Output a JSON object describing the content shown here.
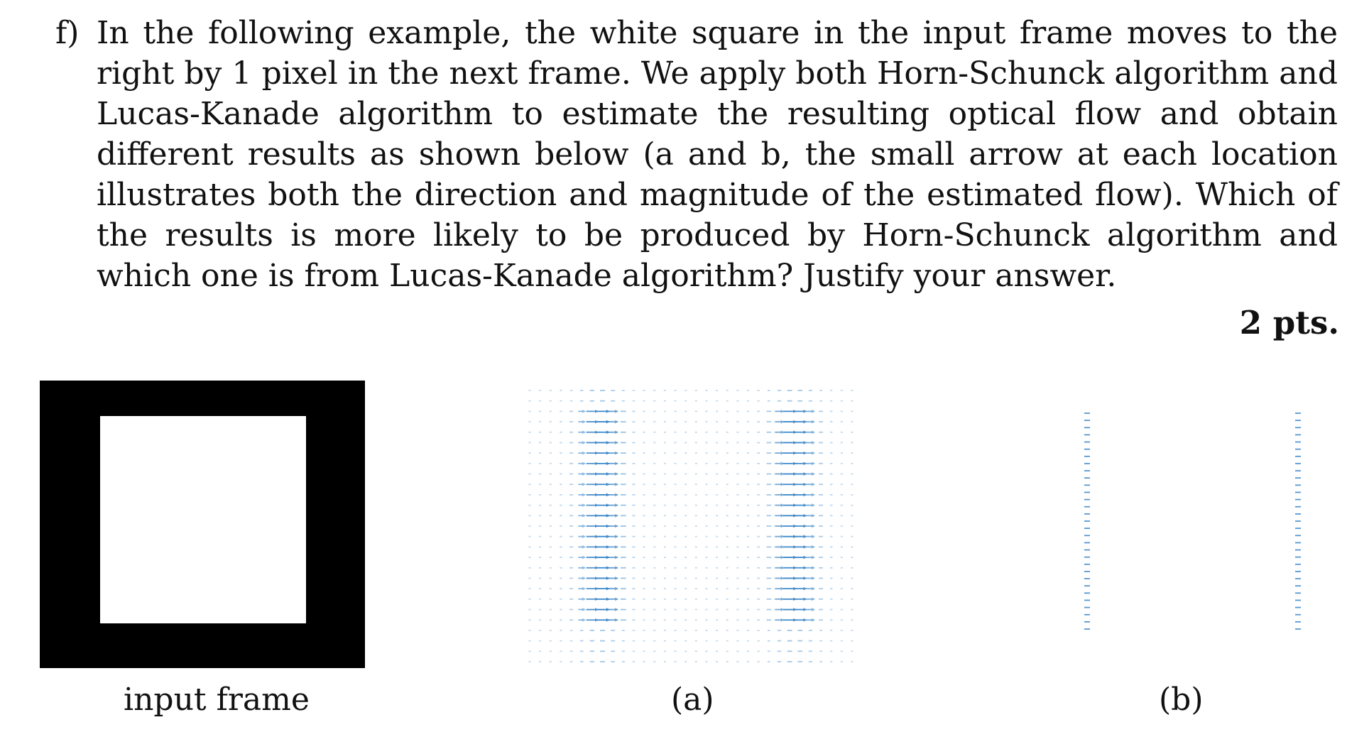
{
  "question": {
    "label": "f)",
    "text": "In the following example, the white square in the input frame moves to the right by 1 pixel in the next frame. We apply both Horn-Schunck algorithm and Lucas-Kanade algorithm to estimate the resulting optical flow and obtain different results as shown below (a and b, the small arrow at each location illustrates both the direction and magnitude of the estimated flow). Which of the results is more likely to be produced by Horn-Schunck algorithm and which one is from Lucas-Kanade algorithm? Justify your answer.",
    "points": "2 pts."
  },
  "figures": {
    "input_caption": "input frame",
    "a_caption": "(a)",
    "b_caption": "(b)",
    "arrow_color": "#3a86c8"
  }
}
